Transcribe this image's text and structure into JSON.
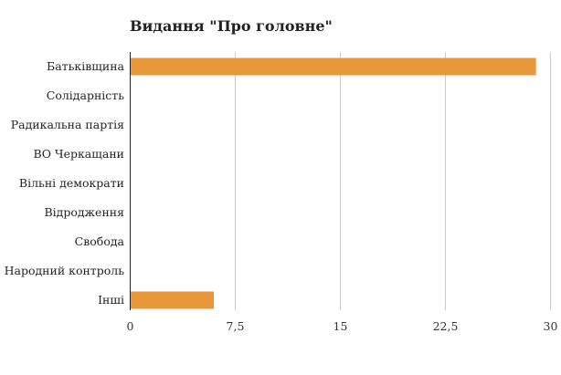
{
  "chart_data": {
    "type": "bar",
    "orientation": "horizontal",
    "title": "Видання \"Про головне\"",
    "categories": [
      "Батьківщина",
      "Солідарність",
      "Радикальна партія",
      "ВО Черкащани",
      "Вільні демократи",
      "Відродження",
      "Свобода",
      "Народний контроль",
      "Інші"
    ],
    "values": [
      29,
      0,
      0,
      0,
      0,
      0,
      0,
      0,
      6
    ],
    "xlim": [
      0,
      30
    ],
    "ticks": [
      0,
      7.5,
      15,
      22.5,
      30
    ],
    "tick_labels": [
      "0",
      "7,5",
      "15",
      "22,5",
      "30"
    ],
    "grid": true,
    "bar_color": "#E8973A"
  }
}
